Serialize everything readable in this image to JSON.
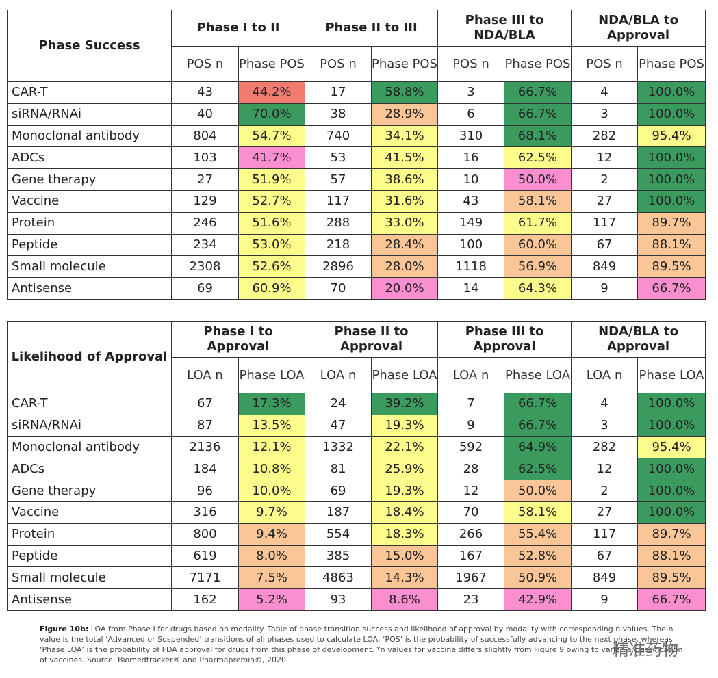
{
  "palette": {
    "green": "#3b9a5d",
    "red": "#f27b6f",
    "orange": "#fbc697",
    "yellow": "#fcfc8d",
    "pink": "#f98fcf"
  },
  "tables": [
    {
      "corner": "Phase Success",
      "groups": [
        "Phase I to II",
        "Phase II to III",
        "Phase III to NDA/BLA",
        "NDA/BLA to Approval"
      ],
      "subheaders": [
        "POS n",
        "Phase POS"
      ],
      "rows": [
        {
          "label": "CAR-T",
          "cells": [
            {
              "n": "43",
              "pct": "44.2%",
              "color": "red"
            },
            {
              "n": "17",
              "pct": "58.8%",
              "color": "green"
            },
            {
              "n": "3",
              "pct": "66.7%",
              "color": "green"
            },
            {
              "n": "4",
              "pct": "100.0%",
              "color": "green"
            }
          ]
        },
        {
          "label": "siRNA/RNAi",
          "cells": [
            {
              "n": "40",
              "pct": "70.0%",
              "color": "green"
            },
            {
              "n": "38",
              "pct": "28.9%",
              "color": "orange"
            },
            {
              "n": "6",
              "pct": "66.7%",
              "color": "green"
            },
            {
              "n": "3",
              "pct": "100.0%",
              "color": "green"
            }
          ]
        },
        {
          "label": "Monoclonal antibody",
          "cells": [
            {
              "n": "804",
              "pct": "54.7%",
              "color": "yellow"
            },
            {
              "n": "740",
              "pct": "34.1%",
              "color": "yellow"
            },
            {
              "n": "310",
              "pct": "68.1%",
              "color": "green"
            },
            {
              "n": "282",
              "pct": "95.4%",
              "color": "yellow"
            }
          ]
        },
        {
          "label": "ADCs",
          "cells": [
            {
              "n": "103",
              "pct": "41.7%",
              "color": "pink"
            },
            {
              "n": "53",
              "pct": "41.5%",
              "color": "yellow"
            },
            {
              "n": "16",
              "pct": "62.5%",
              "color": "yellow"
            },
            {
              "n": "12",
              "pct": "100.0%",
              "color": "green"
            }
          ]
        },
        {
          "label": "Gene therapy",
          "cells": [
            {
              "n": "27",
              "pct": "51.9%",
              "color": "yellow"
            },
            {
              "n": "57",
              "pct": "38.6%",
              "color": "yellow"
            },
            {
              "n": "10",
              "pct": "50.0%",
              "color": "pink"
            },
            {
              "n": "2",
              "pct": "100.0%",
              "color": "green"
            }
          ]
        },
        {
          "label": "Vaccine",
          "cells": [
            {
              "n": "129",
              "pct": "52.7%",
              "color": "yellow"
            },
            {
              "n": "117",
              "pct": "31.6%",
              "color": "yellow"
            },
            {
              "n": "43",
              "pct": "58.1%",
              "color": "orange"
            },
            {
              "n": "27",
              "pct": "100.0%",
              "color": "green"
            }
          ]
        },
        {
          "label": "Protein",
          "cells": [
            {
              "n": "246",
              "pct": "51.6%",
              "color": "yellow"
            },
            {
              "n": "288",
              "pct": "33.0%",
              "color": "yellow"
            },
            {
              "n": "149",
              "pct": "61.7%",
              "color": "yellow"
            },
            {
              "n": "117",
              "pct": "89.7%",
              "color": "orange"
            }
          ]
        },
        {
          "label": "Peptide",
          "cells": [
            {
              "n": "234",
              "pct": "53.0%",
              "color": "yellow"
            },
            {
              "n": "218",
              "pct": "28.4%",
              "color": "orange"
            },
            {
              "n": "100",
              "pct": "60.0%",
              "color": "orange"
            },
            {
              "n": "67",
              "pct": "88.1%",
              "color": "orange"
            }
          ]
        },
        {
          "label": "Small molecule",
          "cells": [
            {
              "n": "2308",
              "pct": "52.6%",
              "color": "yellow"
            },
            {
              "n": "2896",
              "pct": "28.0%",
              "color": "orange"
            },
            {
              "n": "1118",
              "pct": "56.9%",
              "color": "orange"
            },
            {
              "n": "849",
              "pct": "89.5%",
              "color": "orange"
            }
          ]
        },
        {
          "label": "Antisense",
          "cells": [
            {
              "n": "69",
              "pct": "60.9%",
              "color": "yellow"
            },
            {
              "n": "70",
              "pct": "20.0%",
              "color": "pink"
            },
            {
              "n": "14",
              "pct": "64.3%",
              "color": "yellow"
            },
            {
              "n": "9",
              "pct": "66.7%",
              "color": "pink"
            }
          ]
        }
      ]
    },
    {
      "corner": "Likelihood of Approval",
      "groups": [
        "Phase I to Approval",
        "Phase II to Approval",
        "Phase III to Approval",
        "NDA/BLA to Approval"
      ],
      "subheaders": [
        "LOA n",
        "Phase LOA"
      ],
      "rows": [
        {
          "label": "CAR-T",
          "cells": [
            {
              "n": "67",
              "pct": "17.3%",
              "color": "green"
            },
            {
              "n": "24",
              "pct": "39.2%",
              "color": "green"
            },
            {
              "n": "7",
              "pct": "66.7%",
              "color": "green"
            },
            {
              "n": "4",
              "pct": "100.0%",
              "color": "green"
            }
          ]
        },
        {
          "label": "siRNA/RNAi",
          "cells": [
            {
              "n": "87",
              "pct": "13.5%",
              "color": "yellow"
            },
            {
              "n": "47",
              "pct": "19.3%",
              "color": "yellow"
            },
            {
              "n": "9",
              "pct": "66.7%",
              "color": "green"
            },
            {
              "n": "3",
              "pct": "100.0%",
              "color": "green"
            }
          ]
        },
        {
          "label": "Monoclonal antibody",
          "cells": [
            {
              "n": "2136",
              "pct": "12.1%",
              "color": "yellow"
            },
            {
              "n": "1332",
              "pct": "22.1%",
              "color": "yellow"
            },
            {
              "n": "592",
              "pct": "64.9%",
              "color": "green"
            },
            {
              "n": "282",
              "pct": "95.4%",
              "color": "yellow"
            }
          ]
        },
        {
          "label": "ADCs",
          "cells": [
            {
              "n": "184",
              "pct": "10.8%",
              "color": "yellow"
            },
            {
              "n": "81",
              "pct": "25.9%",
              "color": "yellow"
            },
            {
              "n": "28",
              "pct": "62.5%",
              "color": "green"
            },
            {
              "n": "12",
              "pct": "100.0%",
              "color": "green"
            }
          ]
        },
        {
          "label": "Gene therapy",
          "cells": [
            {
              "n": "96",
              "pct": "10.0%",
              "color": "yellow"
            },
            {
              "n": "69",
              "pct": "19.3%",
              "color": "yellow"
            },
            {
              "n": "12",
              "pct": "50.0%",
              "color": "orange"
            },
            {
              "n": "2",
              "pct": "100.0%",
              "color": "green"
            }
          ]
        },
        {
          "label": "Vaccine",
          "cells": [
            {
              "n": "316",
              "pct": "9.7%",
              "color": "yellow"
            },
            {
              "n": "187",
              "pct": "18.4%",
              "color": "yellow"
            },
            {
              "n": "70",
              "pct": "58.1%",
              "color": "yellow"
            },
            {
              "n": "27",
              "pct": "100.0%",
              "color": "green"
            }
          ]
        },
        {
          "label": "Protein",
          "cells": [
            {
              "n": "800",
              "pct": "9.4%",
              "color": "orange"
            },
            {
              "n": "554",
              "pct": "18.3%",
              "color": "yellow"
            },
            {
              "n": "266",
              "pct": "55.4%",
              "color": "orange"
            },
            {
              "n": "117",
              "pct": "89.7%",
              "color": "orange"
            }
          ]
        },
        {
          "label": "Peptide",
          "cells": [
            {
              "n": "619",
              "pct": "8.0%",
              "color": "orange"
            },
            {
              "n": "385",
              "pct": "15.0%",
              "color": "orange"
            },
            {
              "n": "167",
              "pct": "52.8%",
              "color": "orange"
            },
            {
              "n": "67",
              "pct": "88.1%",
              "color": "orange"
            }
          ]
        },
        {
          "label": "Small molecule",
          "cells": [
            {
              "n": "7171",
              "pct": "7.5%",
              "color": "orange"
            },
            {
              "n": "4863",
              "pct": "14.3%",
              "color": "orange"
            },
            {
              "n": "1967",
              "pct": "50.9%",
              "color": "orange"
            },
            {
              "n": "849",
              "pct": "89.5%",
              "color": "orange"
            }
          ]
        },
        {
          "label": "Antisense",
          "cells": [
            {
              "n": "162",
              "pct": "5.2%",
              "color": "pink"
            },
            {
              "n": "93",
              "pct": "8.6%",
              "color": "pink"
            },
            {
              "n": "23",
              "pct": "42.9%",
              "color": "pink"
            },
            {
              "n": "9",
              "pct": "66.7%",
              "color": "pink"
            }
          ]
        }
      ]
    }
  ],
  "caption": {
    "label": "Figure 10b:",
    "text": "LOA from Phase I for drugs based on modality. Table of phase transition success and likelihood of approval by modality with corresponding n values. The n value is the total ‘Advanced or Suspended’ transitions of all phases used to calculate LOA. ‘POS’ is the probability of successfully advancing to the next phase, whereas ‘Phase LOA’ is the probability of FDA approval for drugs from this phase of development. *n values for vaccine differs slightly from Figure 9 owing to variable classification of vaccines. Source: Biomedtracker® and Pharmapremia®, 2020"
  },
  "watermark": "精准药物"
}
